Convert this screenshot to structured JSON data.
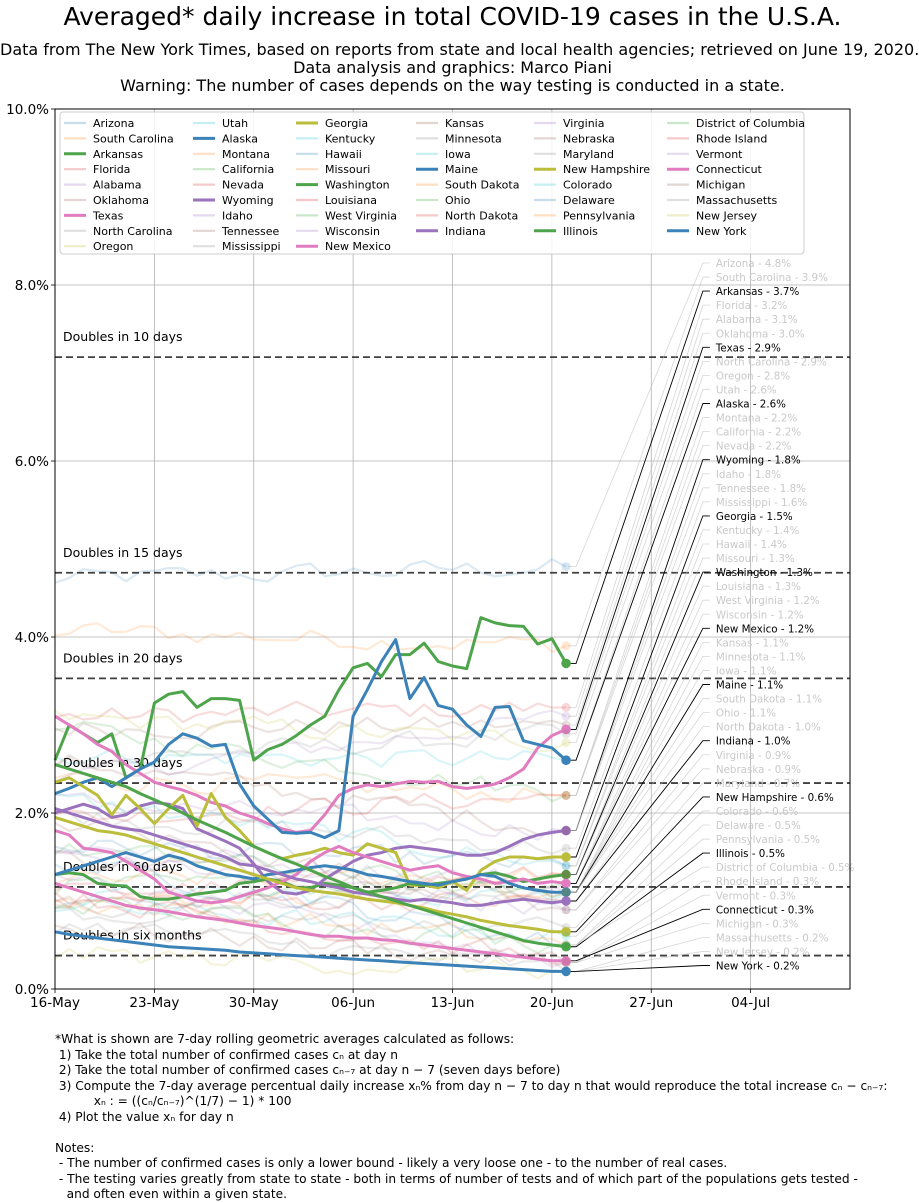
{
  "chart_data": {
    "type": "line",
    "title": "Averaged* daily increase in total COVID-19 cases in the U.S.A.",
    "subtitle_lines": [
      "Data from The New York Times, based on reports from state and local health agencies; retrieved on June 19, 2020.",
      "Data analysis and graphics: Marco Piani",
      "Warning: The number of cases depends on the way testing is conducted in a state."
    ],
    "xlabel": "",
    "ylabel": "",
    "x_range_days": [
      0,
      56
    ],
    "x_ticks": [
      {
        "day": 0,
        "label": "16-May"
      },
      {
        "day": 7,
        "label": "23-May"
      },
      {
        "day": 14,
        "label": "30-May"
      },
      {
        "day": 21,
        "label": "06-Jun"
      },
      {
        "day": 28,
        "label": "13-Jun"
      },
      {
        "day": 35,
        "label": "20-Jun"
      },
      {
        "day": 42,
        "label": "27-Jun"
      },
      {
        "day": 49,
        "label": "04-Jul"
      }
    ],
    "ylim": [
      0,
      10
    ],
    "y_ticks": [
      {
        "value": 0,
        "label": "0.0%"
      },
      {
        "value": 2,
        "label": "2.0%"
      },
      {
        "value": 4,
        "label": "4.0%"
      },
      {
        "value": 6,
        "label": "6.0%"
      },
      {
        "value": 8,
        "label": "8.0%"
      },
      {
        "value": 10,
        "label": "10.0%"
      }
    ],
    "grid": true,
    "reference_lines": [
      {
        "value": 7.18,
        "label": "Doubles in 10 days"
      },
      {
        "value": 4.73,
        "label": "Doubles in 15 days"
      },
      {
        "value": 3.53,
        "label": "Doubles in 20 days"
      },
      {
        "value": 2.34,
        "label": "Doubles in 30 days"
      },
      {
        "value": 1.16,
        "label": "Doubles in 60 days"
      },
      {
        "value": 0.38,
        "label": "Doubles in six months"
      }
    ],
    "highlight_color": {
      "Arkansas": "#4ea44b",
      "Texas": "#e27cc0",
      "Alaska": "#3a82b8",
      "Wyoming": "#9a72bd",
      "Georgia": "#bcbd3a",
      "Washington": "#4ea44b",
      "New Mexico": "#e27cc0",
      "Maine": "#3a82b8",
      "Indiana": "#9a72bd",
      "New Hampshire": "#bcbd3a",
      "Illinois": "#4ea44b",
      "Connecticut": "#e27cc0",
      "New York": "#3a82b8"
    },
    "legend_columns": [
      [
        "Arizona",
        "South Carolina",
        "Arkansas",
        "Florida",
        "Alabama",
        "Oklahoma",
        "Texas",
        "North Carolina",
        "Oregon"
      ],
      [
        "Utah",
        "Alaska",
        "Montana",
        "California",
        "Nevada",
        "Wyoming",
        "Idaho",
        "Tennessee",
        "Mississippi"
      ],
      [
        "Georgia",
        "Kentucky",
        "Hawaii",
        "Missouri",
        "Washington",
        "Louisiana",
        "West Virginia",
        "Wisconsin",
        "New Mexico"
      ],
      [
        "Kansas",
        "Minnesota",
        "Iowa",
        "Maine",
        "South Dakota",
        "Ohio",
        "North Dakota",
        "Indiana"
      ],
      [
        "Virginia",
        "Nebraska",
        "Maryland",
        "New Hampshire",
        "Colorado",
        "Delaware",
        "Pennsylvania",
        "Illinois"
      ],
      [
        "District of Columbia",
        "Rhode Island",
        "Vermont",
        "Connecticut",
        "Michigan",
        "Massachusetts",
        "New Jersey",
        "New York"
      ]
    ],
    "series": [
      {
        "name": "Arizona",
        "value": 4.8,
        "color": "#1f77b4",
        "highlight": false
      },
      {
        "name": "South Carolina",
        "value": 3.9,
        "color": "#ff7f0e",
        "highlight": false
      },
      {
        "name": "Arkansas",
        "value": 3.7,
        "color": "#4ea44b",
        "highlight": true,
        "values": [
          2.6,
          3.0,
          2.9,
          2.8,
          2.9,
          2.4,
          2.5,
          3.25,
          3.35,
          3.38,
          3.2,
          3.3,
          3.3,
          3.28,
          2.6,
          2.72,
          2.78,
          2.88,
          3.0,
          3.1,
          3.4,
          3.65,
          3.7,
          3.55,
          3.8,
          3.8,
          3.93,
          3.72,
          3.67,
          3.64,
          4.22,
          4.16,
          4.13,
          4.12,
          3.92,
          3.98,
          3.7
        ]
      },
      {
        "name": "Florida",
        "value": 3.2,
        "color": "#d62728",
        "highlight": false
      },
      {
        "name": "Alabama",
        "value": 3.1,
        "color": "#9467bd",
        "highlight": false
      },
      {
        "name": "Oklahoma",
        "value": 3.0,
        "color": "#8c564b",
        "highlight": false
      },
      {
        "name": "Texas",
        "value": 2.9,
        "color": "#e27cc0",
        "highlight": true,
        "values": [
          3.1,
          3.0,
          2.9,
          2.78,
          2.7,
          2.55,
          2.45,
          2.35,
          2.3,
          2.26,
          2.2,
          2.12,
          2.08,
          2.0,
          1.95,
          1.88,
          1.82,
          1.78,
          1.8,
          1.98,
          2.2,
          2.28,
          2.32,
          2.3,
          2.33,
          2.36,
          2.35,
          2.36,
          2.3,
          2.28,
          2.3,
          2.33,
          2.4,
          2.5,
          2.74,
          2.88,
          2.95
        ]
      },
      {
        "name": "North Carolina",
        "value": 2.9,
        "color": "#7f7f7f",
        "highlight": false
      },
      {
        "name": "Oregon",
        "value": 2.8,
        "color": "#bcbd22",
        "highlight": false
      },
      {
        "name": "Utah",
        "value": 2.6,
        "color": "#17becf",
        "highlight": false
      },
      {
        "name": "Alaska",
        "value": 2.6,
        "color": "#3a82b8",
        "highlight": true,
        "values": [
          2.22,
          2.28,
          2.35,
          2.4,
          2.3,
          2.4,
          2.5,
          2.58,
          2.78,
          2.9,
          2.85,
          2.76,
          2.78,
          2.33,
          2.08,
          1.93,
          1.78,
          1.77,
          1.78,
          1.72,
          1.8,
          3.1,
          3.4,
          3.72,
          3.97,
          3.3,
          3.54,
          3.22,
          3.18,
          3.0,
          2.87,
          3.2,
          3.21,
          2.82,
          2.78,
          2.74,
          2.6
        ]
      },
      {
        "name": "Montana",
        "value": 2.2,
        "color": "#ff7f0e",
        "highlight": false
      },
      {
        "name": "California",
        "value": 2.2,
        "color": "#2ca02c",
        "highlight": false
      },
      {
        "name": "Nevada",
        "value": 2.2,
        "color": "#d62728",
        "highlight": false
      },
      {
        "name": "Wyoming",
        "value": 1.8,
        "color": "#9a72bd",
        "highlight": true,
        "values": [
          2.0,
          2.05,
          2.1,
          2.05,
          1.95,
          1.98,
          2.08,
          2.12,
          2.1,
          2.05,
          1.82,
          1.75,
          1.68,
          1.6,
          1.42,
          1.22,
          1.1,
          1.08,
          1.12,
          1.25,
          1.35,
          1.45,
          1.52,
          1.55,
          1.6,
          1.62,
          1.6,
          1.58,
          1.55,
          1.52,
          1.52,
          1.55,
          1.62,
          1.7,
          1.75,
          1.78,
          1.8
        ]
      },
      {
        "name": "Idaho",
        "value": 1.8,
        "color": "#9467bd",
        "highlight": false
      },
      {
        "name": "Tennessee",
        "value": 1.8,
        "color": "#8c564b",
        "highlight": false
      },
      {
        "name": "Mississippi",
        "value": 1.6,
        "color": "#7f7f7f",
        "highlight": false
      },
      {
        "name": "Georgia",
        "value": 1.5,
        "color": "#bcbd3a",
        "highlight": true,
        "values": [
          2.35,
          2.4,
          2.3,
          2.2,
          1.98,
          2.2,
          2.05,
          1.88,
          2.05,
          2.2,
          1.85,
          2.22,
          1.95,
          1.8,
          1.62,
          1.55,
          1.48,
          1.52,
          1.55,
          1.6,
          1.55,
          1.52,
          1.65,
          1.6,
          1.55,
          1.18,
          1.18,
          1.15,
          1.22,
          1.12,
          1.35,
          1.45,
          1.5,
          1.5,
          1.48,
          1.5,
          1.5
        ]
      },
      {
        "name": "Kentucky",
        "value": 1.4,
        "color": "#17becf",
        "highlight": false
      },
      {
        "name": "Hawaii",
        "value": 1.4,
        "color": "#1f77b4",
        "highlight": false
      },
      {
        "name": "Missouri",
        "value": 1.3,
        "color": "#ff7f0e",
        "highlight": false
      },
      {
        "name": "Washington",
        "value": 1.3,
        "color": "#4ea44b",
        "highlight": true,
        "values": [
          1.3,
          1.32,
          1.3,
          1.2,
          1.18,
          1.17,
          1.05,
          1.02,
          1.02,
          1.05,
          1.08,
          1.1,
          1.12,
          1.2,
          1.22,
          1.25,
          1.22,
          1.15,
          1.15,
          1.2,
          1.18,
          1.15,
          1.1,
          1.12,
          1.15,
          1.2,
          1.18,
          1.2,
          1.22,
          1.25,
          1.3,
          1.32,
          1.28,
          1.22,
          1.25,
          1.28,
          1.3
        ]
      },
      {
        "name": "Louisiana",
        "value": 1.3,
        "color": "#d62728",
        "highlight": false
      },
      {
        "name": "West Virginia",
        "value": 1.2,
        "color": "#2ca02c",
        "highlight": false
      },
      {
        "name": "Wisconsin",
        "value": 1.2,
        "color": "#9467bd",
        "highlight": false
      },
      {
        "name": "New Mexico",
        "value": 1.2,
        "color": "#e27cc0",
        "highlight": true,
        "values": [
          1.8,
          1.75,
          1.6,
          1.58,
          1.55,
          1.45,
          1.35,
          1.25,
          1.1,
          1.05,
          1.0,
          0.98,
          1.0,
          1.05,
          1.1,
          1.15,
          1.22,
          1.3,
          1.45,
          1.55,
          1.62,
          1.55,
          1.5,
          1.45,
          1.4,
          1.35,
          1.38,
          1.4,
          1.32,
          1.28,
          1.25,
          1.2,
          1.22,
          1.25,
          1.2,
          1.22,
          1.2
        ]
      },
      {
        "name": "Kansas",
        "value": 1.1,
        "color": "#8c564b",
        "highlight": false
      },
      {
        "name": "Minnesota",
        "value": 1.1,
        "color": "#7f7f7f",
        "highlight": false
      },
      {
        "name": "Iowa",
        "value": 1.1,
        "color": "#17becf",
        "highlight": false
      },
      {
        "name": "Maine",
        "value": 1.1,
        "color": "#3a82b8",
        "highlight": true,
        "values": [
          1.3,
          1.35,
          1.4,
          1.45,
          1.5,
          1.55,
          1.5,
          1.45,
          1.52,
          1.48,
          1.4,
          1.35,
          1.3,
          1.28,
          1.25,
          1.3,
          1.32,
          1.35,
          1.38,
          1.4,
          1.38,
          1.35,
          1.3,
          1.28,
          1.25,
          1.22,
          1.2,
          1.18,
          1.22,
          1.25,
          1.3,
          1.28,
          1.2,
          1.15,
          1.12,
          1.1,
          1.1
        ]
      },
      {
        "name": "South Dakota",
        "value": 1.1,
        "color": "#ff7f0e",
        "highlight": false
      },
      {
        "name": "Ohio",
        "value": 1.1,
        "color": "#2ca02c",
        "highlight": false
      },
      {
        "name": "North Dakota",
        "value": 1.0,
        "color": "#d62728",
        "highlight": false
      },
      {
        "name": "Indiana",
        "value": 1.0,
        "color": "#9a72bd",
        "highlight": true,
        "values": [
          2.05,
          2.0,
          1.95,
          1.9,
          1.85,
          1.82,
          1.8,
          1.75,
          1.7,
          1.65,
          1.6,
          1.55,
          1.5,
          1.42,
          1.4,
          1.35,
          1.3,
          1.25,
          1.22,
          1.18,
          1.15,
          1.1,
          1.08,
          1.05,
          1.02,
          1.0,
          1.02,
          1.0,
          0.98,
          0.95,
          0.95,
          0.98,
          1.0,
          1.02,
          1.0,
          0.98,
          1.0
        ]
      },
      {
        "name": "Virginia",
        "value": 0.9,
        "color": "#9467bd",
        "highlight": false
      },
      {
        "name": "Nebraska",
        "value": 0.9,
        "color": "#8c564b",
        "highlight": false
      },
      {
        "name": "Maryland",
        "value": 0.7,
        "color": "#7f7f7f",
        "highlight": false
      },
      {
        "name": "New Hampshire",
        "value": 0.6,
        "color": "#bcbd3a",
        "highlight": true,
        "values": [
          1.95,
          1.9,
          1.85,
          1.8,
          1.78,
          1.75,
          1.7,
          1.65,
          1.6,
          1.55,
          1.5,
          1.45,
          1.4,
          1.35,
          1.3,
          1.25,
          1.2,
          1.15,
          1.12,
          1.1,
          1.08,
          1.05,
          1.02,
          1.0,
          0.98,
          0.95,
          0.92,
          0.88,
          0.85,
          0.82,
          0.78,
          0.75,
          0.72,
          0.7,
          0.68,
          0.65,
          0.65
        ]
      },
      {
        "name": "Colorado",
        "value": 0.6,
        "color": "#17becf",
        "highlight": false
      },
      {
        "name": "Delaware",
        "value": 0.5,
        "color": "#1f77b4",
        "highlight": false
      },
      {
        "name": "Pennsylvania",
        "value": 0.5,
        "color": "#ff7f0e",
        "highlight": false
      },
      {
        "name": "Illinois",
        "value": 0.5,
        "color": "#4ea44b",
        "highlight": true,
        "values": [
          2.55,
          2.5,
          2.45,
          2.4,
          2.35,
          2.3,
          2.22,
          2.15,
          2.08,
          2.0,
          1.92,
          1.85,
          1.78,
          1.7,
          1.62,
          1.55,
          1.48,
          1.42,
          1.35,
          1.28,
          1.22,
          1.15,
          1.1,
          1.05,
          1.0,
          0.95,
          0.9,
          0.85,
          0.8,
          0.75,
          0.7,
          0.65,
          0.6,
          0.55,
          0.52,
          0.5,
          0.48
        ]
      },
      {
        "name": "District of Columbia",
        "value": 0.5,
        "color": "#2ca02c",
        "highlight": false
      },
      {
        "name": "Rhode Island",
        "value": 0.3,
        "color": "#d62728",
        "highlight": false
      },
      {
        "name": "Vermont",
        "value": 0.3,
        "color": "#9467bd",
        "highlight": false
      },
      {
        "name": "Connecticut",
        "value": 0.3,
        "color": "#e27cc0",
        "highlight": true,
        "values": [
          1.2,
          1.15,
          1.1,
          1.05,
          1.0,
          0.95,
          0.92,
          0.9,
          0.88,
          0.85,
          0.82,
          0.8,
          0.78,
          0.75,
          0.72,
          0.7,
          0.68,
          0.65,
          0.62,
          0.6,
          0.6,
          0.58,
          0.58,
          0.56,
          0.55,
          0.52,
          0.5,
          0.48,
          0.46,
          0.44,
          0.42,
          0.4,
          0.38,
          0.36,
          0.34,
          0.32,
          0.32
        ]
      },
      {
        "name": "Michigan",
        "value": 0.3,
        "color": "#8c564b",
        "highlight": false
      },
      {
        "name": "Massachusetts",
        "value": 0.2,
        "color": "#7f7f7f",
        "highlight": false
      },
      {
        "name": "New Jersey",
        "value": 0.2,
        "color": "#bcbd22",
        "highlight": false
      },
      {
        "name": "New York",
        "value": 0.2,
        "color": "#3a82b8",
        "highlight": true,
        "values": [
          0.65,
          0.62,
          0.6,
          0.58,
          0.56,
          0.54,
          0.52,
          0.5,
          0.48,
          0.47,
          0.46,
          0.45,
          0.44,
          0.42,
          0.41,
          0.4,
          0.39,
          0.38,
          0.37,
          0.36,
          0.35,
          0.34,
          0.33,
          0.32,
          0.31,
          0.3,
          0.29,
          0.28,
          0.27,
          0.26,
          0.25,
          0.24,
          0.23,
          0.22,
          0.21,
          0.2,
          0.2
        ]
      }
    ]
  },
  "footnote": {
    "lines": [
      "*What is shown are 7-day rolling geometric averages calculated as follows:",
      " 1) Take the total number of confirmed cases cₙ at day n",
      " 2) Take the total number of confirmed cases cₙ₋₇ at day n − 7 (seven days before)",
      " 3) Compute the 7-day average percentual daily increase xₙ% from day n − 7 to day n that would reproduce the total increase cₙ − cₙ₋₇:",
      "          xₙ : = ((cₙ/cₙ₋₇)^(1/7) − 1) * 100",
      " 4) Plot the value xₙ for day n",
      "",
      "Notes:",
      " - The number of confirmed cases is only a lower bound - likely a very loose one - to the number of real cases.",
      " - The testing varies greatly from state to state - both in terms of number of tests and of which part of the populations gets tested -",
      "   and often even within a given state."
    ]
  }
}
